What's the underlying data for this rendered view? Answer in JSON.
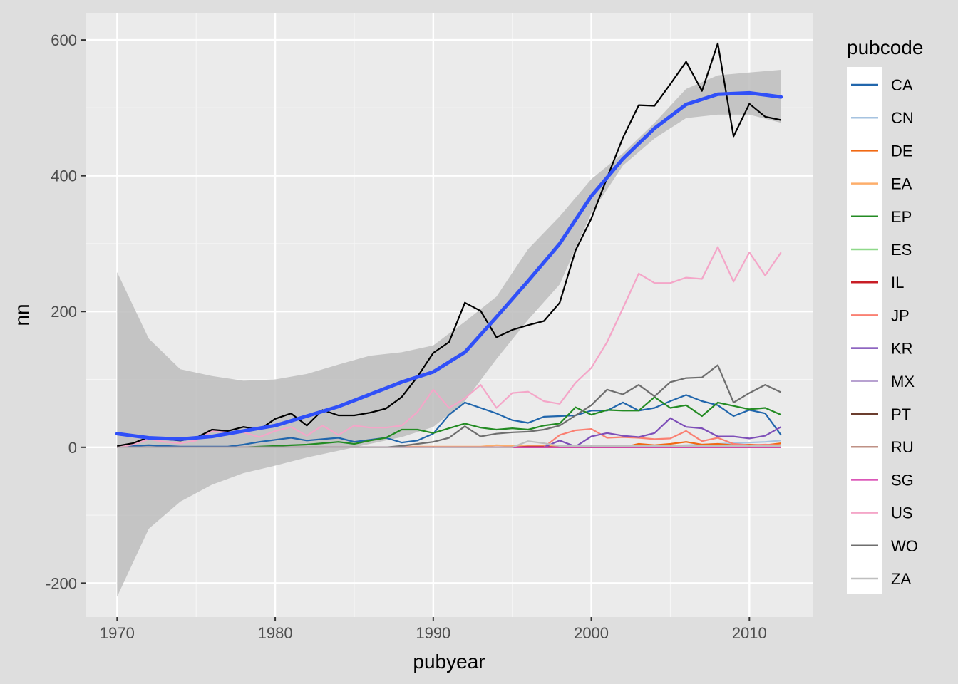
{
  "chart_data": {
    "type": "line",
    "title": "",
    "xlabel": "pubyear",
    "ylabel": "nn",
    "xlim": [
      1968,
      2014
    ],
    "ylim": [
      -250,
      640
    ],
    "x_ticks": [
      1970,
      1980,
      1990,
      2000,
      2010
    ],
    "y_ticks": [
      -200,
      0,
      200,
      400,
      600
    ],
    "x_tick_labels": [
      "1970",
      "1980",
      "1990",
      "2000",
      "2010"
    ],
    "y_tick_labels": [
      "-200",
      "0",
      "200",
      "400",
      "600"
    ],
    "grid": true,
    "legend": {
      "title": "pubcode",
      "position": "right"
    },
    "x": [
      1970,
      1971,
      1972,
      1973,
      1974,
      1975,
      1976,
      1977,
      1978,
      1979,
      1980,
      1981,
      1982,
      1983,
      1984,
      1985,
      1986,
      1987,
      1988,
      1989,
      1990,
      1991,
      1992,
      1993,
      1994,
      1995,
      1996,
      1997,
      1998,
      1999,
      2000,
      2001,
      2002,
      2003,
      2004,
      2005,
      2006,
      2007,
      2008,
      2009,
      2010,
      2011,
      2012
    ],
    "series": [
      {
        "name": "CA",
        "color": "#2166ac",
        "values": [
          0,
          2,
          3,
          2,
          1,
          1,
          1,
          1,
          4,
          8,
          11,
          14,
          10,
          12,
          14,
          8,
          11,
          14,
          7,
          10,
          20,
          48,
          66,
          58,
          50,
          40,
          36,
          45,
          46,
          47,
          54,
          54,
          66,
          54,
          58,
          68,
          77,
          68,
          62,
          46,
          55,
          50,
          18
        ]
      },
      {
        "name": "CN",
        "color": "#a6c3e0",
        "values": [
          0,
          0,
          0,
          0,
          0,
          0,
          0,
          0,
          0,
          0,
          0,
          0,
          0,
          0,
          0,
          0,
          0,
          0,
          0,
          0,
          0,
          0,
          0,
          0,
          0,
          0,
          0,
          0,
          0,
          0,
          0,
          0,
          1,
          1,
          2,
          2,
          3,
          4,
          5,
          6,
          7,
          8,
          10
        ]
      },
      {
        "name": "DE",
        "color": "#f16913",
        "values": [
          0,
          0,
          0,
          0,
          0,
          0,
          0,
          0,
          0,
          0,
          0,
          0,
          0,
          0,
          0,
          0,
          0,
          0,
          0,
          0,
          0,
          0,
          0,
          0,
          0,
          0,
          0,
          0,
          0,
          0,
          0,
          0,
          0,
          5,
          3,
          5,
          8,
          4,
          5,
          3,
          4,
          3,
          6
        ]
      },
      {
        "name": "EA",
        "color": "#fdae6b",
        "values": [
          0,
          0,
          0,
          0,
          0,
          0,
          0,
          0,
          0,
          0,
          0,
          0,
          0,
          0,
          0,
          0,
          0,
          0,
          1,
          1,
          1,
          1,
          1,
          1,
          3,
          2,
          2,
          2,
          2,
          2,
          2,
          2,
          2,
          2,
          2,
          2,
          2,
          2,
          2,
          2,
          2,
          2,
          2
        ]
      },
      {
        "name": "EP",
        "color": "#238b23",
        "values": [
          0,
          0,
          0,
          0,
          0,
          0,
          0,
          0,
          0,
          1,
          2,
          3,
          4,
          6,
          8,
          5,
          10,
          14,
          26,
          26,
          21,
          28,
          35,
          29,
          26,
          28,
          26,
          32,
          35,
          59,
          48,
          55,
          54,
          54,
          74,
          58,
          62,
          46,
          66,
          61,
          56,
          58,
          48
        ]
      },
      {
        "name": "ES",
        "color": "#8fd98a",
        "values": [
          0,
          0,
          0,
          0,
          0,
          0,
          0,
          0,
          0,
          0,
          0,
          0,
          0,
          0,
          0,
          0,
          0,
          0,
          0,
          0,
          0,
          0,
          0,
          0,
          0,
          0,
          0,
          0,
          0,
          0,
          0,
          0,
          0,
          0,
          0,
          0,
          0,
          0,
          0,
          0,
          0,
          0,
          0
        ]
      },
      {
        "name": "IL",
        "color": "#c81d25",
        "values": [
          0,
          0,
          0,
          0,
          0,
          0,
          0,
          0,
          0,
          0,
          0,
          0,
          0,
          0,
          0,
          0,
          0,
          0,
          0,
          0,
          0,
          0,
          0,
          0,
          0,
          0,
          1,
          1,
          0,
          1,
          1,
          1,
          1,
          1,
          1,
          1,
          1,
          1,
          1,
          1,
          1,
          1,
          1
        ]
      },
      {
        "name": "JP",
        "color": "#fa8072",
        "values": [
          0,
          0,
          0,
          0,
          0,
          0,
          0,
          0,
          0,
          0,
          0,
          0,
          0,
          0,
          0,
          0,
          0,
          0,
          0,
          0,
          0,
          0,
          0,
          0,
          0,
          0,
          0,
          0,
          18,
          25,
          27,
          14,
          15,
          14,
          12,
          13,
          24,
          9,
          14,
          5,
          3,
          4,
          3
        ]
      },
      {
        "name": "KR",
        "color": "#7e4fb8",
        "values": [
          0,
          0,
          0,
          0,
          0,
          0,
          0,
          0,
          0,
          0,
          0,
          0,
          0,
          0,
          0,
          0,
          0,
          0,
          0,
          0,
          0,
          0,
          0,
          0,
          0,
          0,
          0,
          0,
          10,
          1,
          16,
          21,
          17,
          15,
          21,
          43,
          30,
          28,
          16,
          16,
          13,
          17,
          30
        ]
      },
      {
        "name": "MX",
        "color": "#b8a2d1",
        "values": [
          0,
          0,
          0,
          0,
          0,
          0,
          0,
          0,
          0,
          0,
          0,
          0,
          0,
          0,
          0,
          0,
          0,
          0,
          0,
          0,
          0,
          0,
          0,
          0,
          0,
          0,
          0,
          0,
          0,
          0,
          0,
          0,
          0,
          0,
          0,
          0,
          0,
          0,
          0,
          0,
          0,
          0,
          0
        ]
      },
      {
        "name": "PT",
        "color": "#6b3d2e",
        "values": [
          0,
          0,
          0,
          0,
          0,
          0,
          0,
          0,
          0,
          0,
          0,
          0,
          0,
          0,
          0,
          0,
          0,
          0,
          0,
          0,
          0,
          0,
          0,
          0,
          0,
          0,
          0,
          0,
          0,
          0,
          0,
          0,
          0,
          0,
          0,
          0,
          0,
          0,
          0,
          0,
          0,
          0,
          0
        ]
      },
      {
        "name": "RU",
        "color": "#bf9185",
        "values": [
          0,
          0,
          0,
          0,
          0,
          0,
          0,
          0,
          0,
          0,
          0,
          0,
          0,
          0,
          0,
          0,
          0,
          0,
          0,
          0,
          0,
          0,
          0,
          0,
          0,
          0,
          0,
          0,
          0,
          0,
          0,
          0,
          0,
          0,
          0,
          0,
          0,
          0,
          0,
          0,
          0,
          0,
          0
        ]
      },
      {
        "name": "SG",
        "color": "#d63fae",
        "values": [
          0,
          0,
          0,
          0,
          0,
          0,
          0,
          0,
          0,
          0,
          0,
          0,
          0,
          0,
          0,
          0,
          0,
          0,
          0,
          0,
          0,
          0,
          0,
          0,
          0,
          0,
          0,
          0,
          0,
          0,
          0,
          0,
          0,
          0,
          0,
          0,
          0,
          0,
          0,
          0,
          0,
          0,
          0
        ]
      },
      {
        "name": "US",
        "color": "#f4a6c8",
        "values": [
          0,
          4,
          12,
          8,
          6,
          10,
          24,
          22,
          22,
          15,
          24,
          30,
          17,
          32,
          18,
          32,
          29,
          29,
          32,
          52,
          85,
          58,
          72,
          92,
          58,
          80,
          82,
          68,
          64,
          95,
          117,
          155,
          205,
          256,
          242,
          242,
          250,
          248,
          295,
          244,
          287,
          253,
          287
        ]
      },
      {
        "name": "WO",
        "color": "#6e6e6e",
        "values": [
          0,
          0,
          0,
          0,
          0,
          0,
          0,
          0,
          0,
          0,
          0,
          0,
          0,
          0,
          0,
          0,
          0,
          0,
          2,
          5,
          8,
          14,
          31,
          16,
          20,
          22,
          23,
          26,
          32,
          47,
          62,
          85,
          78,
          92,
          75,
          96,
          102,
          103,
          121,
          66,
          80,
          92,
          81
        ]
      },
      {
        "name": "ZA",
        "color": "#bfbfbf",
        "values": [
          0,
          0,
          0,
          0,
          0,
          0,
          0,
          0,
          0,
          0,
          0,
          0,
          0,
          0,
          0,
          0,
          0,
          0,
          0,
          0,
          0,
          0,
          0,
          0,
          0,
          0,
          9,
          6,
          2,
          2,
          2,
          2,
          2,
          2,
          2,
          2,
          2,
          2,
          2,
          2,
          2,
          2,
          2
        ]
      }
    ],
    "total_series": {
      "color": "#000000",
      "values": [
        2,
        6,
        15,
        12,
        10,
        14,
        26,
        24,
        30,
        26,
        42,
        50,
        32,
        55,
        47,
        47,
        51,
        57,
        74,
        104,
        139,
        155,
        213,
        201,
        162,
        173,
        180,
        186,
        213,
        290,
        337,
        397,
        456,
        504,
        503,
        535,
        568,
        525,
        595,
        458,
        506,
        487,
        482
      ]
    },
    "smooth": {
      "color": "#3050f8",
      "band_color": "#bdbdbd",
      "x": [
        1970,
        1972,
        1974,
        1976,
        1978,
        1980,
        1982,
        1984,
        1986,
        1988,
        1990,
        1992,
        1994,
        1996,
        1998,
        2000,
        2002,
        2004,
        2006,
        2008,
        2010,
        2012
      ],
      "fit": [
        20,
        14,
        12,
        16,
        24,
        32,
        46,
        60,
        78,
        96,
        111,
        140,
        192,
        245,
        300,
        370,
        425,
        470,
        505,
        520,
        522,
        516
      ],
      "lower": [
        -220,
        -120,
        -80,
        -55,
        -38,
        -27,
        -15,
        -5,
        5,
        15,
        30,
        68,
        130,
        188,
        240,
        345,
        415,
        455,
        485,
        490,
        490,
        478
      ],
      "upper": [
        258,
        160,
        115,
        105,
        98,
        100,
        108,
        122,
        135,
        140,
        150,
        185,
        222,
        292,
        340,
        395,
        433,
        478,
        528,
        548,
        552,
        556
      ]
    }
  }
}
